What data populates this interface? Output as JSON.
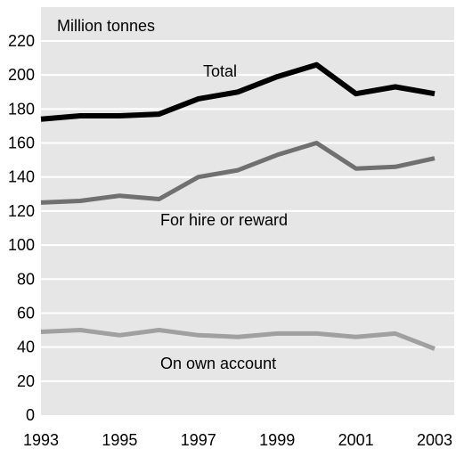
{
  "chart_data": {
    "type": "line",
    "title": "",
    "xlabel": "",
    "ylabel": "Million tonnes",
    "x": [
      1993,
      1994,
      1995,
      1996,
      1997,
      1998,
      1999,
      2000,
      2001,
      2002,
      2003
    ],
    "x_ticks": [
      "1993",
      "1995",
      "1997",
      "1999",
      "2001",
      "2003"
    ],
    "y_ticks": [
      "0",
      "20",
      "40",
      "60",
      "80",
      "100",
      "120",
      "140",
      "160",
      "180",
      "200",
      "220"
    ],
    "ylim": [
      0,
      220
    ],
    "xlim": [
      1993,
      2003
    ],
    "grid": true,
    "grid_color": "#ffffff",
    "background": "#e6e6e6",
    "series": [
      {
        "name": "Total",
        "color": "#000000",
        "values": [
          174,
          176,
          176,
          177,
          186,
          190,
          199,
          206,
          189,
          193,
          189
        ]
      },
      {
        "name": "For hire or reward",
        "color": "#707070",
        "values": [
          125,
          126,
          129,
          127,
          140,
          144,
          153,
          160,
          145,
          146,
          151
        ]
      },
      {
        "name": "On own account",
        "color": "#a0a0a0",
        "values": [
          49,
          50,
          47,
          50,
          47,
          46,
          48,
          48,
          46,
          48,
          39
        ]
      }
    ]
  }
}
